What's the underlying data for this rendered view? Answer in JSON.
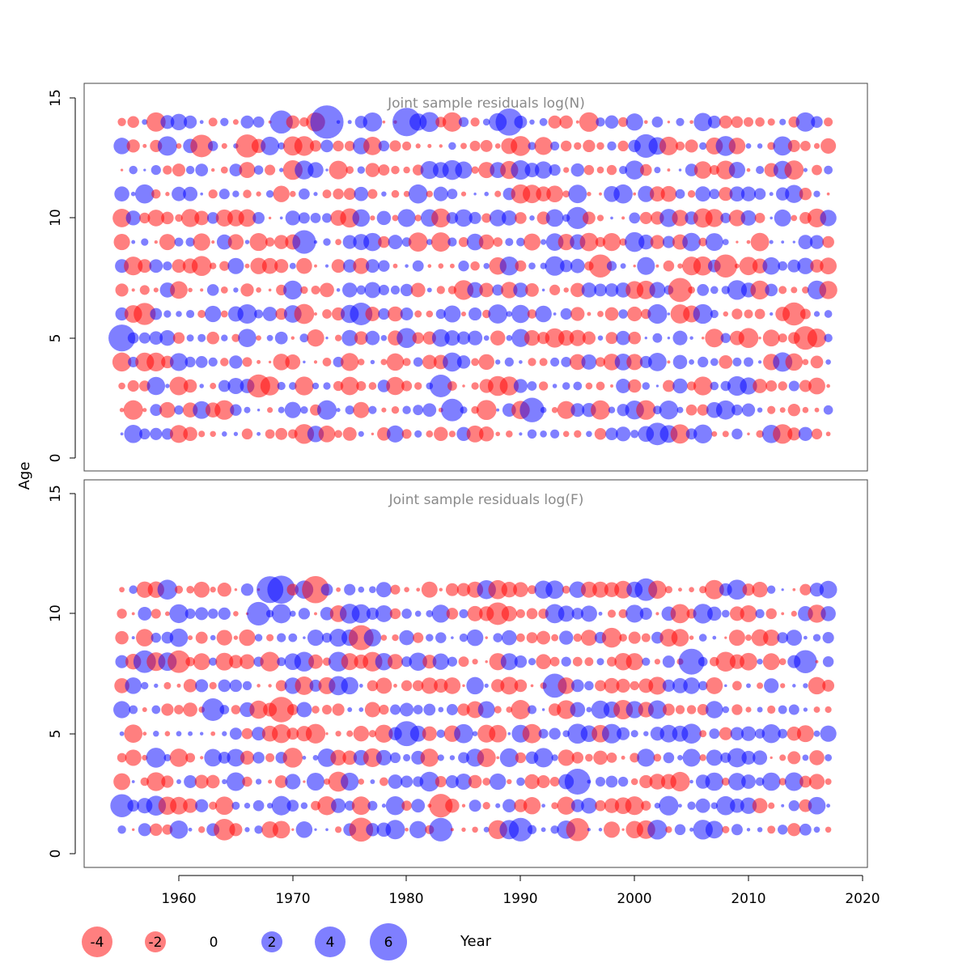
{
  "chart_data": {
    "type": "scatter",
    "xlabel": "Year",
    "ylabel": "Age",
    "xlim": [
      1952,
      2021
    ],
    "x_ticks": [
      "1960",
      "1970",
      "1980",
      "1990",
      "2000",
      "2010",
      "2020"
    ],
    "y_ticks": [
      "0",
      "5",
      "10",
      "15"
    ],
    "colors": {
      "positive": "#0000ff",
      "negative": "#ff0000",
      "opacity": 0.5
    },
    "panels": [
      {
        "title": "Joint sample residuals log(N)",
        "ylim": [
          -0.5,
          15.5
        ],
        "ages": [
          1,
          14
        ],
        "highlights": [
          {
            "year": 1955,
            "age": 5,
            "value": 3.1
          },
          {
            "year": 1957,
            "age": 6,
            "value": -2.1
          },
          {
            "year": 1962,
            "age": 13,
            "value": -2.2
          },
          {
            "year": 1966,
            "age": 13,
            "value": -2.3
          },
          {
            "year": 1967,
            "age": 3,
            "value": -2.3
          },
          {
            "year": 1969,
            "age": 14,
            "value": 2.3
          },
          {
            "year": 1971,
            "age": 9,
            "value": 2.4
          },
          {
            "year": 1973,
            "age": 14,
            "value": 4.8
          },
          {
            "year": 1976,
            "age": 6,
            "value": 2.2
          },
          {
            "year": 1980,
            "age": 14,
            "value": 3.5
          },
          {
            "year": 1983,
            "age": 3,
            "value": 2.2
          },
          {
            "year": 1984,
            "age": 2,
            "value": 2.2
          },
          {
            "year": 1989,
            "age": 14,
            "value": 3.2
          },
          {
            "year": 1991,
            "age": 2,
            "value": 2.6
          },
          {
            "year": 1995,
            "age": 10,
            "value": 2.1
          },
          {
            "year": 1997,
            "age": 8,
            "value": -2.3
          },
          {
            "year": 2001,
            "age": 13,
            "value": 2.4
          },
          {
            "year": 2002,
            "age": 1,
            "value": 2.2
          },
          {
            "year": 2004,
            "age": 7,
            "value": -2.5
          },
          {
            "year": 2008,
            "age": 8,
            "value": -2.3
          },
          {
            "year": 2014,
            "age": 6,
            "value": -2.3
          },
          {
            "year": 2015,
            "age": 5,
            "value": -2.4
          }
        ]
      },
      {
        "title": "Joint sample residuals log(F)",
        "ylim": [
          -0.5,
          15.5
        ],
        "ages": [
          1,
          11
        ],
        "highlights": [
          {
            "year": 1955,
            "age": 2,
            "value": 2.3
          },
          {
            "year": 1957,
            "age": 8,
            "value": 2.2
          },
          {
            "year": 1960,
            "age": 8,
            "value": -2.2
          },
          {
            "year": 1963,
            "age": 6,
            "value": 2.2
          },
          {
            "year": 1964,
            "age": 1,
            "value": -2.0
          },
          {
            "year": 1967,
            "age": 10,
            "value": 2.4
          },
          {
            "year": 1968,
            "age": 11,
            "value": 3.1
          },
          {
            "year": 1969,
            "age": 11,
            "value": 3.4
          },
          {
            "year": 1969,
            "age": 6,
            "value": -2.8
          },
          {
            "year": 1972,
            "age": 11,
            "value": -3.2
          },
          {
            "year": 1976,
            "age": 9,
            "value": -2.7
          },
          {
            "year": 1976,
            "age": 1,
            "value": -2.5
          },
          {
            "year": 1980,
            "age": 5,
            "value": 2.7
          },
          {
            "year": 1983,
            "age": 1,
            "value": 2.4
          },
          {
            "year": 1983,
            "age": 2,
            "value": -2.4
          },
          {
            "year": 1988,
            "age": 10,
            "value": -2.2
          },
          {
            "year": 1990,
            "age": 1,
            "value": 2.4
          },
          {
            "year": 1993,
            "age": 7,
            "value": 2.5
          },
          {
            "year": 1995,
            "age": 3,
            "value": 2.9
          },
          {
            "year": 1995,
            "age": 1,
            "value": -2.3
          },
          {
            "year": 2001,
            "age": 11,
            "value": 2.2
          },
          {
            "year": 2005,
            "age": 8,
            "value": 2.9
          },
          {
            "year": 2015,
            "age": 8,
            "value": 2.3
          }
        ]
      }
    ],
    "legend": {
      "values": [
        -4,
        -2,
        0,
        2,
        4,
        6
      ],
      "labels": [
        "-4",
        "-2",
        "0",
        "2",
        "4",
        "6"
      ],
      "position": "bottom"
    }
  }
}
